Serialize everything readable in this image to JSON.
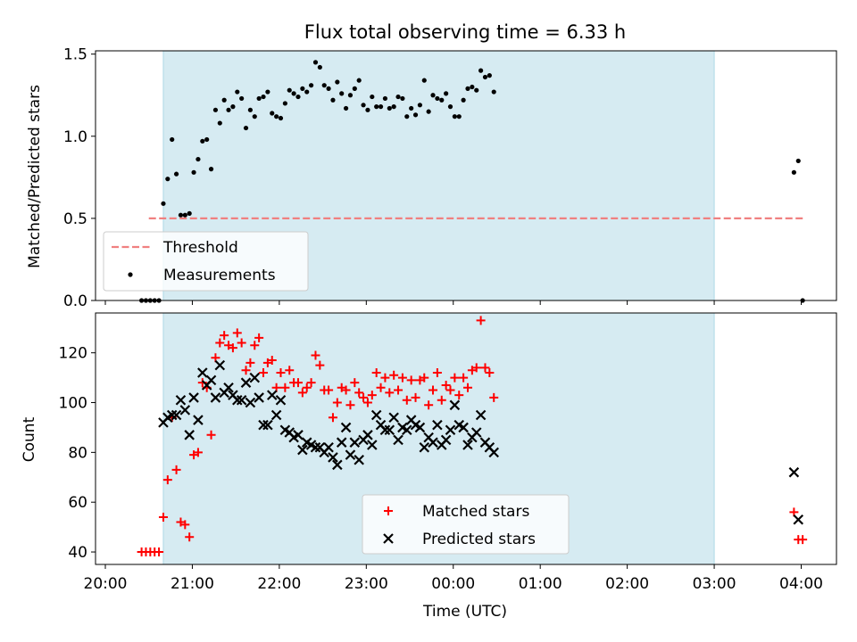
{
  "title": "Flux total observing time = 6.33 h",
  "chart_data": [
    {
      "type": "scatter",
      "ylabel": "Matched/Predicted stars",
      "ylim": [
        0,
        1.52
      ],
      "yticks": [
        "0.0",
        "0.5",
        "1.0",
        "1.5"
      ],
      "observing_window": [
        "20:40",
        "03:00"
      ],
      "threshold": {
        "name": "Threshold",
        "value": 0.5,
        "x": [
          "20:30",
          "04:02"
        ],
        "color": "#f08080"
      },
      "legend": {
        "placement": "lower-left"
      },
      "series": [
        {
          "name": "Measurements",
          "color": "#000000",
          "points": [
            [
              "20:25",
              0.0
            ],
            [
              "20:28",
              0.0
            ],
            [
              "20:31",
              0.0
            ],
            [
              "20:34",
              0.0
            ],
            [
              "20:37",
              0.0
            ],
            [
              "20:40",
              0.59
            ],
            [
              "20:43",
              0.74
            ],
            [
              "20:46",
              0.98
            ],
            [
              "20:49",
              0.77
            ],
            [
              "20:52",
              0.52
            ],
            [
              "20:55",
              0.52
            ],
            [
              "20:58",
              0.53
            ],
            [
              "21:01",
              0.78
            ],
            [
              "21:04",
              0.86
            ],
            [
              "21:07",
              0.97
            ],
            [
              "21:10",
              0.98
            ],
            [
              "21:13",
              0.8
            ],
            [
              "21:16",
              1.16
            ],
            [
              "21:19",
              1.08
            ],
            [
              "21:22",
              1.22
            ],
            [
              "21:25",
              1.16
            ],
            [
              "21:28",
              1.18
            ],
            [
              "21:31",
              1.27
            ],
            [
              "21:34",
              1.23
            ],
            [
              "21:37",
              1.05
            ],
            [
              "21:40",
              1.16
            ],
            [
              "21:43",
              1.12
            ],
            [
              "21:46",
              1.23
            ],
            [
              "21:49",
              1.24
            ],
            [
              "21:52",
              1.27
            ],
            [
              "21:55",
              1.14
            ],
            [
              "21:58",
              1.12
            ],
            [
              "22:01",
              1.11
            ],
            [
              "22:04",
              1.2
            ],
            [
              "22:07",
              1.28
            ],
            [
              "22:10",
              1.26
            ],
            [
              "22:13",
              1.24
            ],
            [
              "22:16",
              1.29
            ],
            [
              "22:19",
              1.27
            ],
            [
              "22:22",
              1.31
            ],
            [
              "22:25",
              1.45
            ],
            [
              "22:28",
              1.42
            ],
            [
              "22:31",
              1.31
            ],
            [
              "22:34",
              1.29
            ],
            [
              "22:37",
              1.22
            ],
            [
              "22:40",
              1.33
            ],
            [
              "22:43",
              1.26
            ],
            [
              "22:46",
              1.17
            ],
            [
              "22:49",
              1.25
            ],
            [
              "22:52",
              1.29
            ],
            [
              "22:55",
              1.34
            ],
            [
              "22:58",
              1.19
            ],
            [
              "23:01",
              1.16
            ],
            [
              "23:04",
              1.24
            ],
            [
              "23:07",
              1.18
            ],
            [
              "23:10",
              1.18
            ],
            [
              "23:13",
              1.23
            ],
            [
              "23:16",
              1.17
            ],
            [
              "23:19",
              1.18
            ],
            [
              "23:22",
              1.24
            ],
            [
              "23:25",
              1.23
            ],
            [
              "23:28",
              1.12
            ],
            [
              "23:31",
              1.17
            ],
            [
              "23:34",
              1.13
            ],
            [
              "23:37",
              1.19
            ],
            [
              "23:40",
              1.34
            ],
            [
              "23:43",
              1.15
            ],
            [
              "23:46",
              1.25
            ],
            [
              "23:49",
              1.23
            ],
            [
              "23:52",
              1.22
            ],
            [
              "23:55",
              1.26
            ],
            [
              "23:58",
              1.18
            ],
            [
              "00:01",
              1.12
            ],
            [
              "00:04",
              1.12
            ],
            [
              "00:07",
              1.22
            ],
            [
              "00:10",
              1.29
            ],
            [
              "00:13",
              1.3
            ],
            [
              "00:16",
              1.28
            ],
            [
              "00:19",
              1.4
            ],
            [
              "00:22",
              1.36
            ],
            [
              "00:25",
              1.37
            ],
            [
              "00:28",
              1.27
            ],
            [
              "03:55",
              0.78
            ],
            [
              "03:58",
              0.85
            ],
            [
              "04:01",
              0.0
            ]
          ]
        }
      ]
    },
    {
      "type": "scatter",
      "xlabel": "Time (UTC)",
      "ylabel": "Count",
      "ylim": [
        35,
        136
      ],
      "yticks": [
        "40",
        "60",
        "80",
        "100",
        "120"
      ],
      "xticks": [
        "20:00",
        "21:00",
        "22:00",
        "23:00",
        "00:00",
        "01:00",
        "02:00",
        "03:00",
        "04:00"
      ],
      "observing_window": [
        "20:40",
        "03:00"
      ],
      "legend": {
        "placement": "lower-center"
      },
      "series": [
        {
          "name": "Matched stars",
          "marker": "plus",
          "color": "#ff0000",
          "points": [
            [
              "20:25",
              40
            ],
            [
              "20:28",
              40
            ],
            [
              "20:31",
              40
            ],
            [
              "20:34",
              40
            ],
            [
              "20:37",
              40
            ],
            [
              "20:40",
              54
            ],
            [
              "20:43",
              69
            ],
            [
              "20:46",
              94
            ],
            [
              "20:49",
              73
            ],
            [
              "20:52",
              52
            ],
            [
              "20:55",
              51
            ],
            [
              "20:58",
              46
            ],
            [
              "21:01",
              79
            ],
            [
              "21:04",
              80
            ],
            [
              "21:07",
              108
            ],
            [
              "21:10",
              106
            ],
            [
              "21:13",
              87
            ],
            [
              "21:16",
              118
            ],
            [
              "21:19",
              124
            ],
            [
              "21:22",
              127
            ],
            [
              "21:25",
              123
            ],
            [
              "21:28",
              122
            ],
            [
              "21:31",
              128
            ],
            [
              "21:34",
              124
            ],
            [
              "21:37",
              113
            ],
            [
              "21:40",
              116
            ],
            [
              "21:43",
              123
            ],
            [
              "21:46",
              126
            ],
            [
              "21:49",
              112
            ],
            [
              "21:52",
              116
            ],
            [
              "21:55",
              117
            ],
            [
              "21:58",
              106
            ],
            [
              "22:01",
              112
            ],
            [
              "22:04",
              106
            ],
            [
              "22:07",
              113
            ],
            [
              "22:10",
              108
            ],
            [
              "22:13",
              108
            ],
            [
              "22:16",
              104
            ],
            [
              "22:19",
              106
            ],
            [
              "22:22",
              108
            ],
            [
              "22:25",
              119
            ],
            [
              "22:28",
              115
            ],
            [
              "22:31",
              105
            ],
            [
              "22:34",
              105
            ],
            [
              "22:37",
              94
            ],
            [
              "22:40",
              100
            ],
            [
              "22:43",
              106
            ],
            [
              "22:46",
              105
            ],
            [
              "22:49",
              99
            ],
            [
              "22:52",
              108
            ],
            [
              "22:55",
              104
            ],
            [
              "22:58",
              102
            ],
            [
              "23:01",
              100
            ],
            [
              "23:04",
              103
            ],
            [
              "23:07",
              112
            ],
            [
              "23:10",
              106
            ],
            [
              "23:13",
              110
            ],
            [
              "23:16",
              104
            ],
            [
              "23:19",
              111
            ],
            [
              "23:22",
              105
            ],
            [
              "23:25",
              110
            ],
            [
              "23:28",
              101
            ],
            [
              "23:31",
              109
            ],
            [
              "23:34",
              102
            ],
            [
              "23:37",
              109
            ],
            [
              "23:40",
              110
            ],
            [
              "23:43",
              99
            ],
            [
              "23:46",
              105
            ],
            [
              "23:49",
              112
            ],
            [
              "23:52",
              101
            ],
            [
              "23:55",
              107
            ],
            [
              "23:58",
              105
            ],
            [
              "00:01",
              110
            ],
            [
              "00:04",
              103
            ],
            [
              "00:07",
              110
            ],
            [
              "00:10",
              106
            ],
            [
              "00:13",
              113
            ],
            [
              "00:16",
              114
            ],
            [
              "00:19",
              133
            ],
            [
              "00:22",
              114
            ],
            [
              "00:25",
              112
            ],
            [
              "00:28",
              102
            ],
            [
              "03:55",
              56
            ],
            [
              "03:58",
              45
            ],
            [
              "04:01",
              45
            ]
          ]
        },
        {
          "name": "Predicted stars",
          "marker": "x",
          "color": "#000000",
          "points": [
            [
              "20:40",
              92
            ],
            [
              "20:43",
              94
            ],
            [
              "20:46",
              95
            ],
            [
              "20:49",
              95
            ],
            [
              "20:52",
              101
            ],
            [
              "20:55",
              97
            ],
            [
              "20:58",
              87
            ],
            [
              "21:01",
              102
            ],
            [
              "21:04",
              93
            ],
            [
              "21:07",
              112
            ],
            [
              "21:10",
              107
            ],
            [
              "21:13",
              109
            ],
            [
              "21:16",
              102
            ],
            [
              "21:19",
              115
            ],
            [
              "21:22",
              104
            ],
            [
              "21:25",
              106
            ],
            [
              "21:28",
              103
            ],
            [
              "21:31",
              101
            ],
            [
              "21:34",
              101
            ],
            [
              "21:37",
              108
            ],
            [
              "21:40",
              100
            ],
            [
              "21:43",
              110
            ],
            [
              "21:46",
              102
            ],
            [
              "21:49",
              91
            ],
            [
              "21:52",
              91
            ],
            [
              "21:55",
              103
            ],
            [
              "21:58",
              95
            ],
            [
              "22:01",
              101
            ],
            [
              "22:04",
              89
            ],
            [
              "22:07",
              88
            ],
            [
              "22:10",
              86
            ],
            [
              "22:13",
              87
            ],
            [
              "22:16",
              81
            ],
            [
              "22:19",
              84
            ],
            [
              "22:22",
              83
            ],
            [
              "22:25",
              82
            ],
            [
              "22:28",
              82
            ],
            [
              "22:31",
              80
            ],
            [
              "22:34",
              82
            ],
            [
              "22:37",
              78
            ],
            [
              "22:40",
              75
            ],
            [
              "22:43",
              84
            ],
            [
              "22:46",
              90
            ],
            [
              "22:49",
              79
            ],
            [
              "22:52",
              84
            ],
            [
              "22:55",
              77
            ],
            [
              "22:58",
              85
            ],
            [
              "23:01",
              87
            ],
            [
              "23:04",
              83
            ],
            [
              "23:07",
              95
            ],
            [
              "23:10",
              91
            ],
            [
              "23:13",
              89
            ],
            [
              "23:16",
              89
            ],
            [
              "23:19",
              94
            ],
            [
              "23:22",
              85
            ],
            [
              "23:25",
              90
            ],
            [
              "23:28",
              89
            ],
            [
              "23:31",
              93
            ],
            [
              "23:34",
              91
            ],
            [
              "23:37",
              90
            ],
            [
              "23:40",
              82
            ],
            [
              "23:43",
              86
            ],
            [
              "23:46",
              84
            ],
            [
              "23:49",
              91
            ],
            [
              "23:52",
              83
            ],
            [
              "23:55",
              85
            ],
            [
              "23:58",
              89
            ],
            [
              "00:01",
              99
            ],
            [
              "00:04",
              91
            ],
            [
              "00:07",
              90
            ],
            [
              "00:10",
              83
            ],
            [
              "00:13",
              86
            ],
            [
              "00:16",
              88
            ],
            [
              "00:19",
              95
            ],
            [
              "00:22",
              84
            ],
            [
              "00:25",
              82
            ],
            [
              "00:28",
              80
            ],
            [
              "03:55",
              72
            ],
            [
              "03:58",
              53
            ]
          ]
        }
      ]
    }
  ]
}
